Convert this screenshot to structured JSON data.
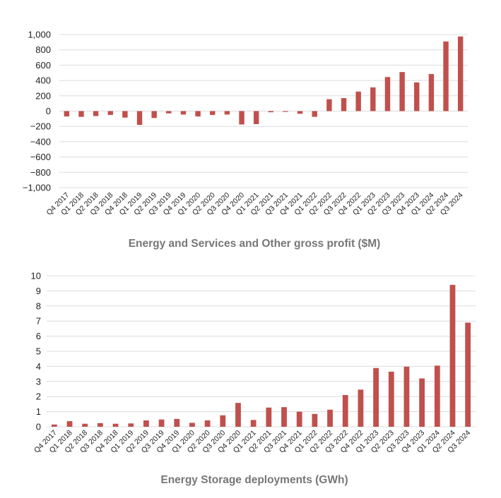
{
  "colors": {
    "bar": "#c0504d",
    "grid": "#dcdcdc",
    "title": "#777777"
  },
  "chart_data": [
    {
      "type": "bar",
      "title": "Energy and Services and Other gross profit ($M)",
      "xlabel": "",
      "ylabel": "",
      "ylim": [
        -1000,
        1000
      ],
      "yticks": [
        1000,
        800,
        600,
        400,
        200,
        0,
        -200,
        -400,
        -600,
        -800,
        -1000
      ],
      "ytick_labels": [
        "1,000",
        "800",
        "600",
        "400",
        "200",
        "0",
        "−200",
        "−400",
        "−600",
        "−800",
        "−1,000"
      ],
      "grid": true,
      "categories": [
        "Q4 2017",
        "Q1 2018",
        "Q2 2018",
        "Q3 2018",
        "Q4 2018",
        "Q1 2019",
        "Q2 2019",
        "Q3 2019",
        "Q4 2019",
        "Q1 2020",
        "Q2 2020",
        "Q3 2020",
        "Q4 2020",
        "Q1 2021",
        "Q2 2021",
        "Q3 2021",
        "Q4 2021",
        "Q1 2022",
        "Q2 2022",
        "Q3 2022",
        "Q4 2022",
        "Q1 2023",
        "Q2 2023",
        "Q3 2023",
        "Q4 2023",
        "Q1 2024",
        "Q2 2024",
        "Q3 2024"
      ],
      "values": [
        -70,
        -75,
        -65,
        -50,
        -85,
        -180,
        -90,
        -30,
        -45,
        -70,
        -50,
        -45,
        -175,
        -170,
        -15,
        -10,
        -35,
        -75,
        155,
        170,
        255,
        310,
        445,
        510,
        375,
        485,
        910,
        975
      ]
    },
    {
      "type": "bar",
      "title": "Energy Storage deployments (GWh)",
      "xlabel": "",
      "ylabel": "",
      "ylim": [
        0,
        10
      ],
      "yticks": [
        10,
        9,
        8,
        7,
        6,
        5,
        4,
        3,
        2,
        1,
        0
      ],
      "ytick_labels": [
        "10",
        "9",
        "8",
        "7",
        "6",
        "5",
        "4",
        "3",
        "2",
        "1",
        "0"
      ],
      "grid": true,
      "categories": [
        "Q4 2017",
        "Q1 2018",
        "Q2 2018",
        "Q3 2018",
        "Q4 2018",
        "Q1 2019",
        "Q2 2019",
        "Q3 2019",
        "Q4 2019",
        "Q1 2020",
        "Q2 2020",
        "Q3 2020",
        "Q4 2020",
        "Q1 2021",
        "Q2 2021",
        "Q3 2021",
        "Q4 2021",
        "Q1 2022",
        "Q2 2022",
        "Q3 2022",
        "Q4 2022",
        "Q1 2023",
        "Q2 2023",
        "Q3 2023",
        "Q4 2023",
        "Q1 2024",
        "Q2 2024",
        "Q3 2024"
      ],
      "values": [
        0.15,
        0.37,
        0.2,
        0.24,
        0.2,
        0.22,
        0.42,
        0.48,
        0.52,
        0.26,
        0.42,
        0.76,
        1.58,
        0.45,
        1.27,
        1.3,
        1.0,
        0.85,
        1.13,
        2.1,
        2.46,
        3.89,
        3.65,
        3.98,
        3.2,
        4.05,
        9.4,
        6.9
      ]
    }
  ]
}
